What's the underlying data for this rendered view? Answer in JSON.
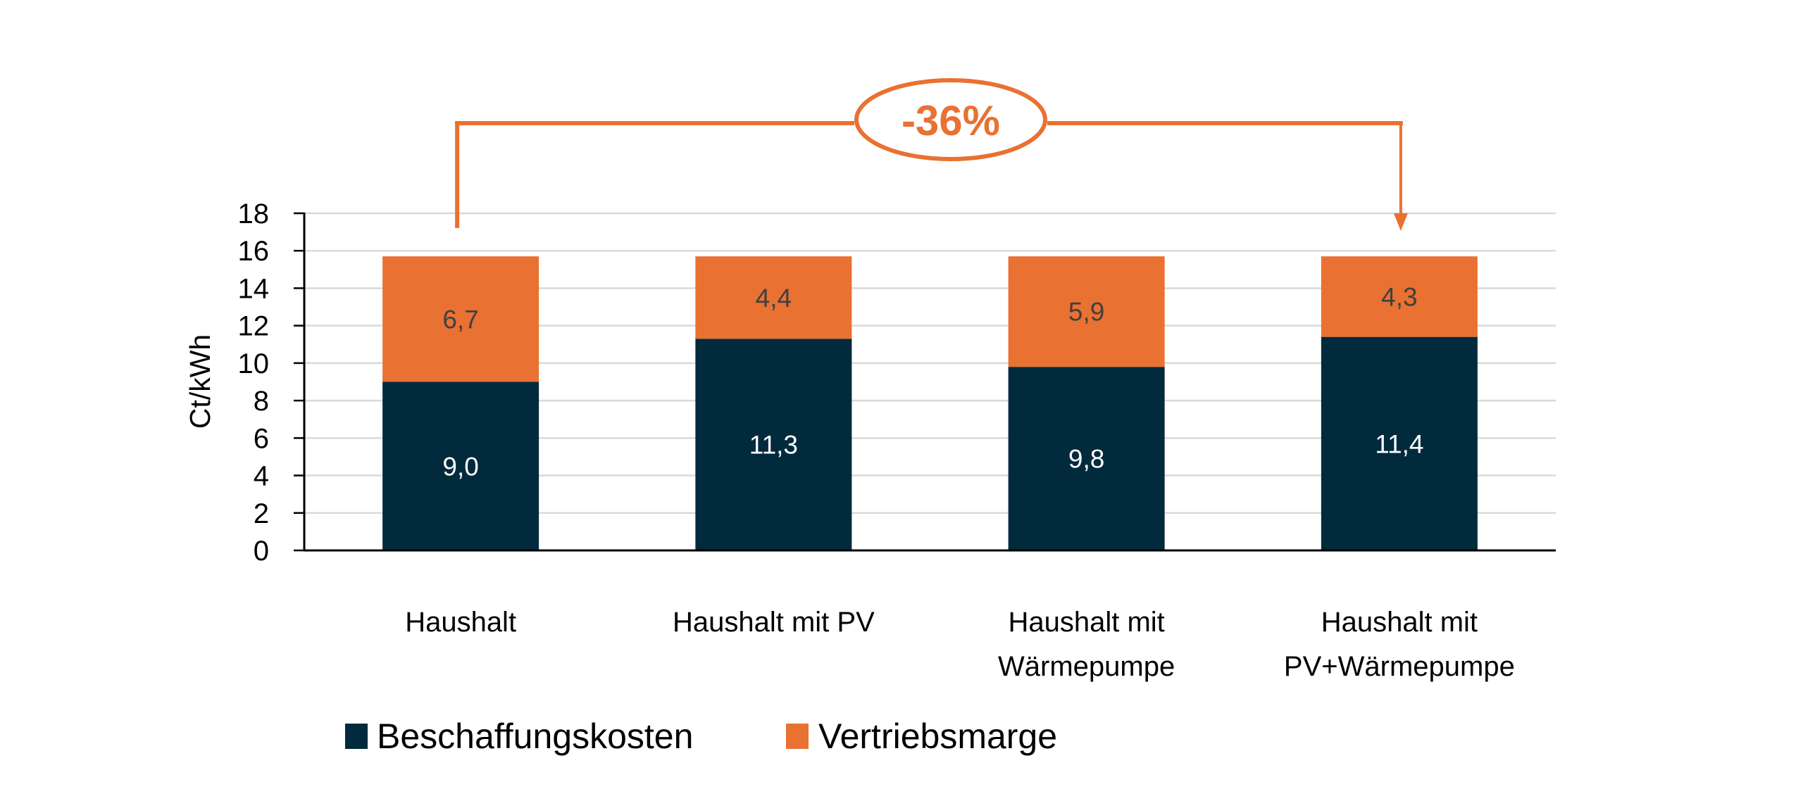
{
  "chart_data": {
    "type": "bar",
    "stacked": true,
    "title": "",
    "xlabel": "",
    "ylabel": "Ct/kWh",
    "ylim": [
      0,
      18
    ],
    "yticks": [
      "0",
      "2",
      "4",
      "6",
      "8",
      "10",
      "12",
      "14",
      "16",
      "18"
    ],
    "ytick_values": [
      0,
      2,
      4,
      6,
      8,
      10,
      12,
      14,
      16,
      18
    ],
    "grid": true,
    "categories": [
      [
        "Haushalt"
      ],
      [
        "Haushalt mit PV"
      ],
      [
        "Haushalt mit",
        "Wärmepumpe"
      ],
      [
        "Haushalt mit",
        "PV+Wärmepumpe"
      ]
    ],
    "series": [
      {
        "name": "Beschaffungskosten",
        "color": "#022A3D",
        "label_color": "#FFFFFF",
        "values": [
          9.0,
          11.3,
          9.8,
          11.4
        ],
        "labels": [
          "9,0",
          "11,3",
          "9,8",
          "11,4"
        ]
      },
      {
        "name": "Vertriebsmarge",
        "color": "#E97132",
        "label_color": "#404040",
        "values": [
          6.7,
          4.4,
          5.9,
          4.3
        ],
        "labels": [
          "6,7",
          "4,4",
          "5,9",
          "4,3"
        ]
      }
    ],
    "legend": "bottom-left",
    "annotation": {
      "text": "-36%",
      "from_category": 0,
      "to_category": 3,
      "color": "#E97132"
    },
    "gridline_color": "#D9D9D9"
  }
}
